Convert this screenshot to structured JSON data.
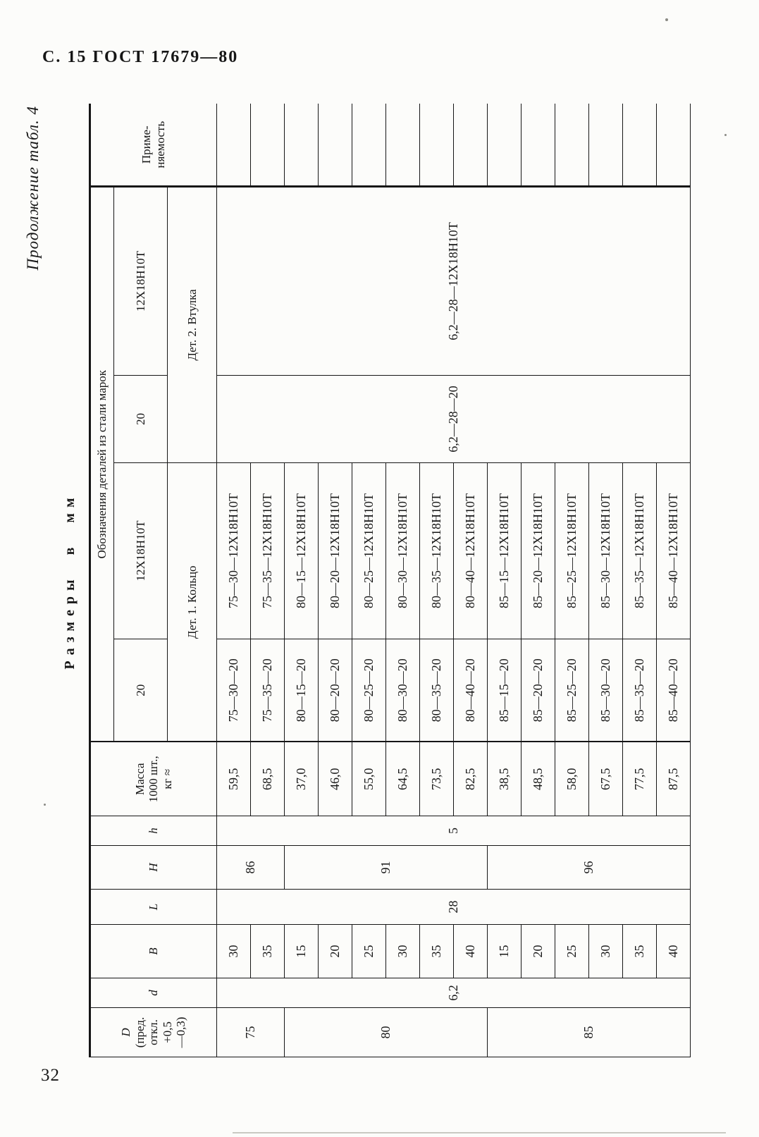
{
  "page": {
    "header": "С. 15 ГОСТ 17679—80",
    "page_number": "32",
    "continuation_note": "Продолжение табл. 4",
    "units_note": "Размеры в мм"
  },
  "table": {
    "col_D": "D",
    "col_D_tol": [
      "(пред.",
      "откл.",
      "+0,5",
      "—0,3)"
    ],
    "col_d": "d",
    "col_B": "B",
    "col_L": "L",
    "col_H": "H",
    "col_h": "h",
    "col_mass": [
      "Масса",
      "1000 шт.,",
      "кг ≈"
    ],
    "group_header": "Обозначения деталей из стали марок",
    "grades": [
      "20",
      "12Х18Н10Т",
      "20",
      "12Х18Н10Т"
    ],
    "det1_label": "Дет. 1. Кольцо",
    "det2_label": "Дет. 2. Втулка",
    "col_prim": [
      "Приме-",
      "няемость"
    ],
    "merged": {
      "d": "6,2",
      "L": "28",
      "h": "5",
      "vtulka_20": "6,2—28—20",
      "vtulka_12x18": "6,2—28—12Х18Н10Т"
    },
    "d_groups": [
      {
        "value": "75",
        "rows": 2
      },
      {
        "value": "80",
        "rows": 6
      },
      {
        "value": "85",
        "rows": 6
      }
    ],
    "h_groups": [
      {
        "value": "86",
        "rows": 2
      },
      {
        "value": "91",
        "rows": 6
      },
      {
        "value": "96",
        "rows": 6
      }
    ],
    "rows": [
      {
        "B": "30",
        "mass": "59,5",
        "ring20": "75—30—20",
        "ring12": "75—30—12Х18Н10Т",
        "prim": ""
      },
      {
        "B": "35",
        "mass": "68,5",
        "ring20": "75—35—20",
        "ring12": "75—35—12Х18Н10Т",
        "prim": ""
      },
      {
        "B": "15",
        "mass": "37,0",
        "ring20": "80—15—20",
        "ring12": "80—15—12Х18Н10Т",
        "prim": ""
      },
      {
        "B": "20",
        "mass": "46,0",
        "ring20": "80—20—20",
        "ring12": "80—20—12Х18Н10Т",
        "prim": ""
      },
      {
        "B": "25",
        "mass": "55,0",
        "ring20": "80—25—20",
        "ring12": "80—25—12Х18Н10Т",
        "prim": ""
      },
      {
        "B": "30",
        "mass": "64,5",
        "ring20": "80—30—20",
        "ring12": "80—30—12Х18Н10Т",
        "prim": ""
      },
      {
        "B": "35",
        "mass": "73,5",
        "ring20": "80—35—20",
        "ring12": "80—35—12Х18Н10Т",
        "prim": ""
      },
      {
        "B": "40",
        "mass": "82,5",
        "ring20": "80—40—20",
        "ring12": "80—40—12Х18Н10Т",
        "prim": ""
      },
      {
        "B": "15",
        "mass": "38,5",
        "ring20": "85—15—20",
        "ring12": "85—15—12Х18Н10Т",
        "prim": ""
      },
      {
        "B": "20",
        "mass": "48,5",
        "ring20": "85—20—20",
        "ring12": "85—20—12Х18Н10Т",
        "prim": ""
      },
      {
        "B": "25",
        "mass": "58,0",
        "ring20": "85—25—20",
        "ring12": "85—25—12Х18Н10Т",
        "prim": ""
      },
      {
        "B": "30",
        "mass": "67,5",
        "ring20": "85—30—20",
        "ring12": "85—30—12Х18Н10Т",
        "prim": ""
      },
      {
        "B": "35",
        "mass": "77,5",
        "ring20": "85—35—20",
        "ring12": "85—35—12Х18Н10Т",
        "prim": ""
      },
      {
        "B": "40",
        "mass": "87,5",
        "ring20": "85—40—20",
        "ring12": "85—40—12Х18Н10Т",
        "prim": ""
      }
    ]
  }
}
